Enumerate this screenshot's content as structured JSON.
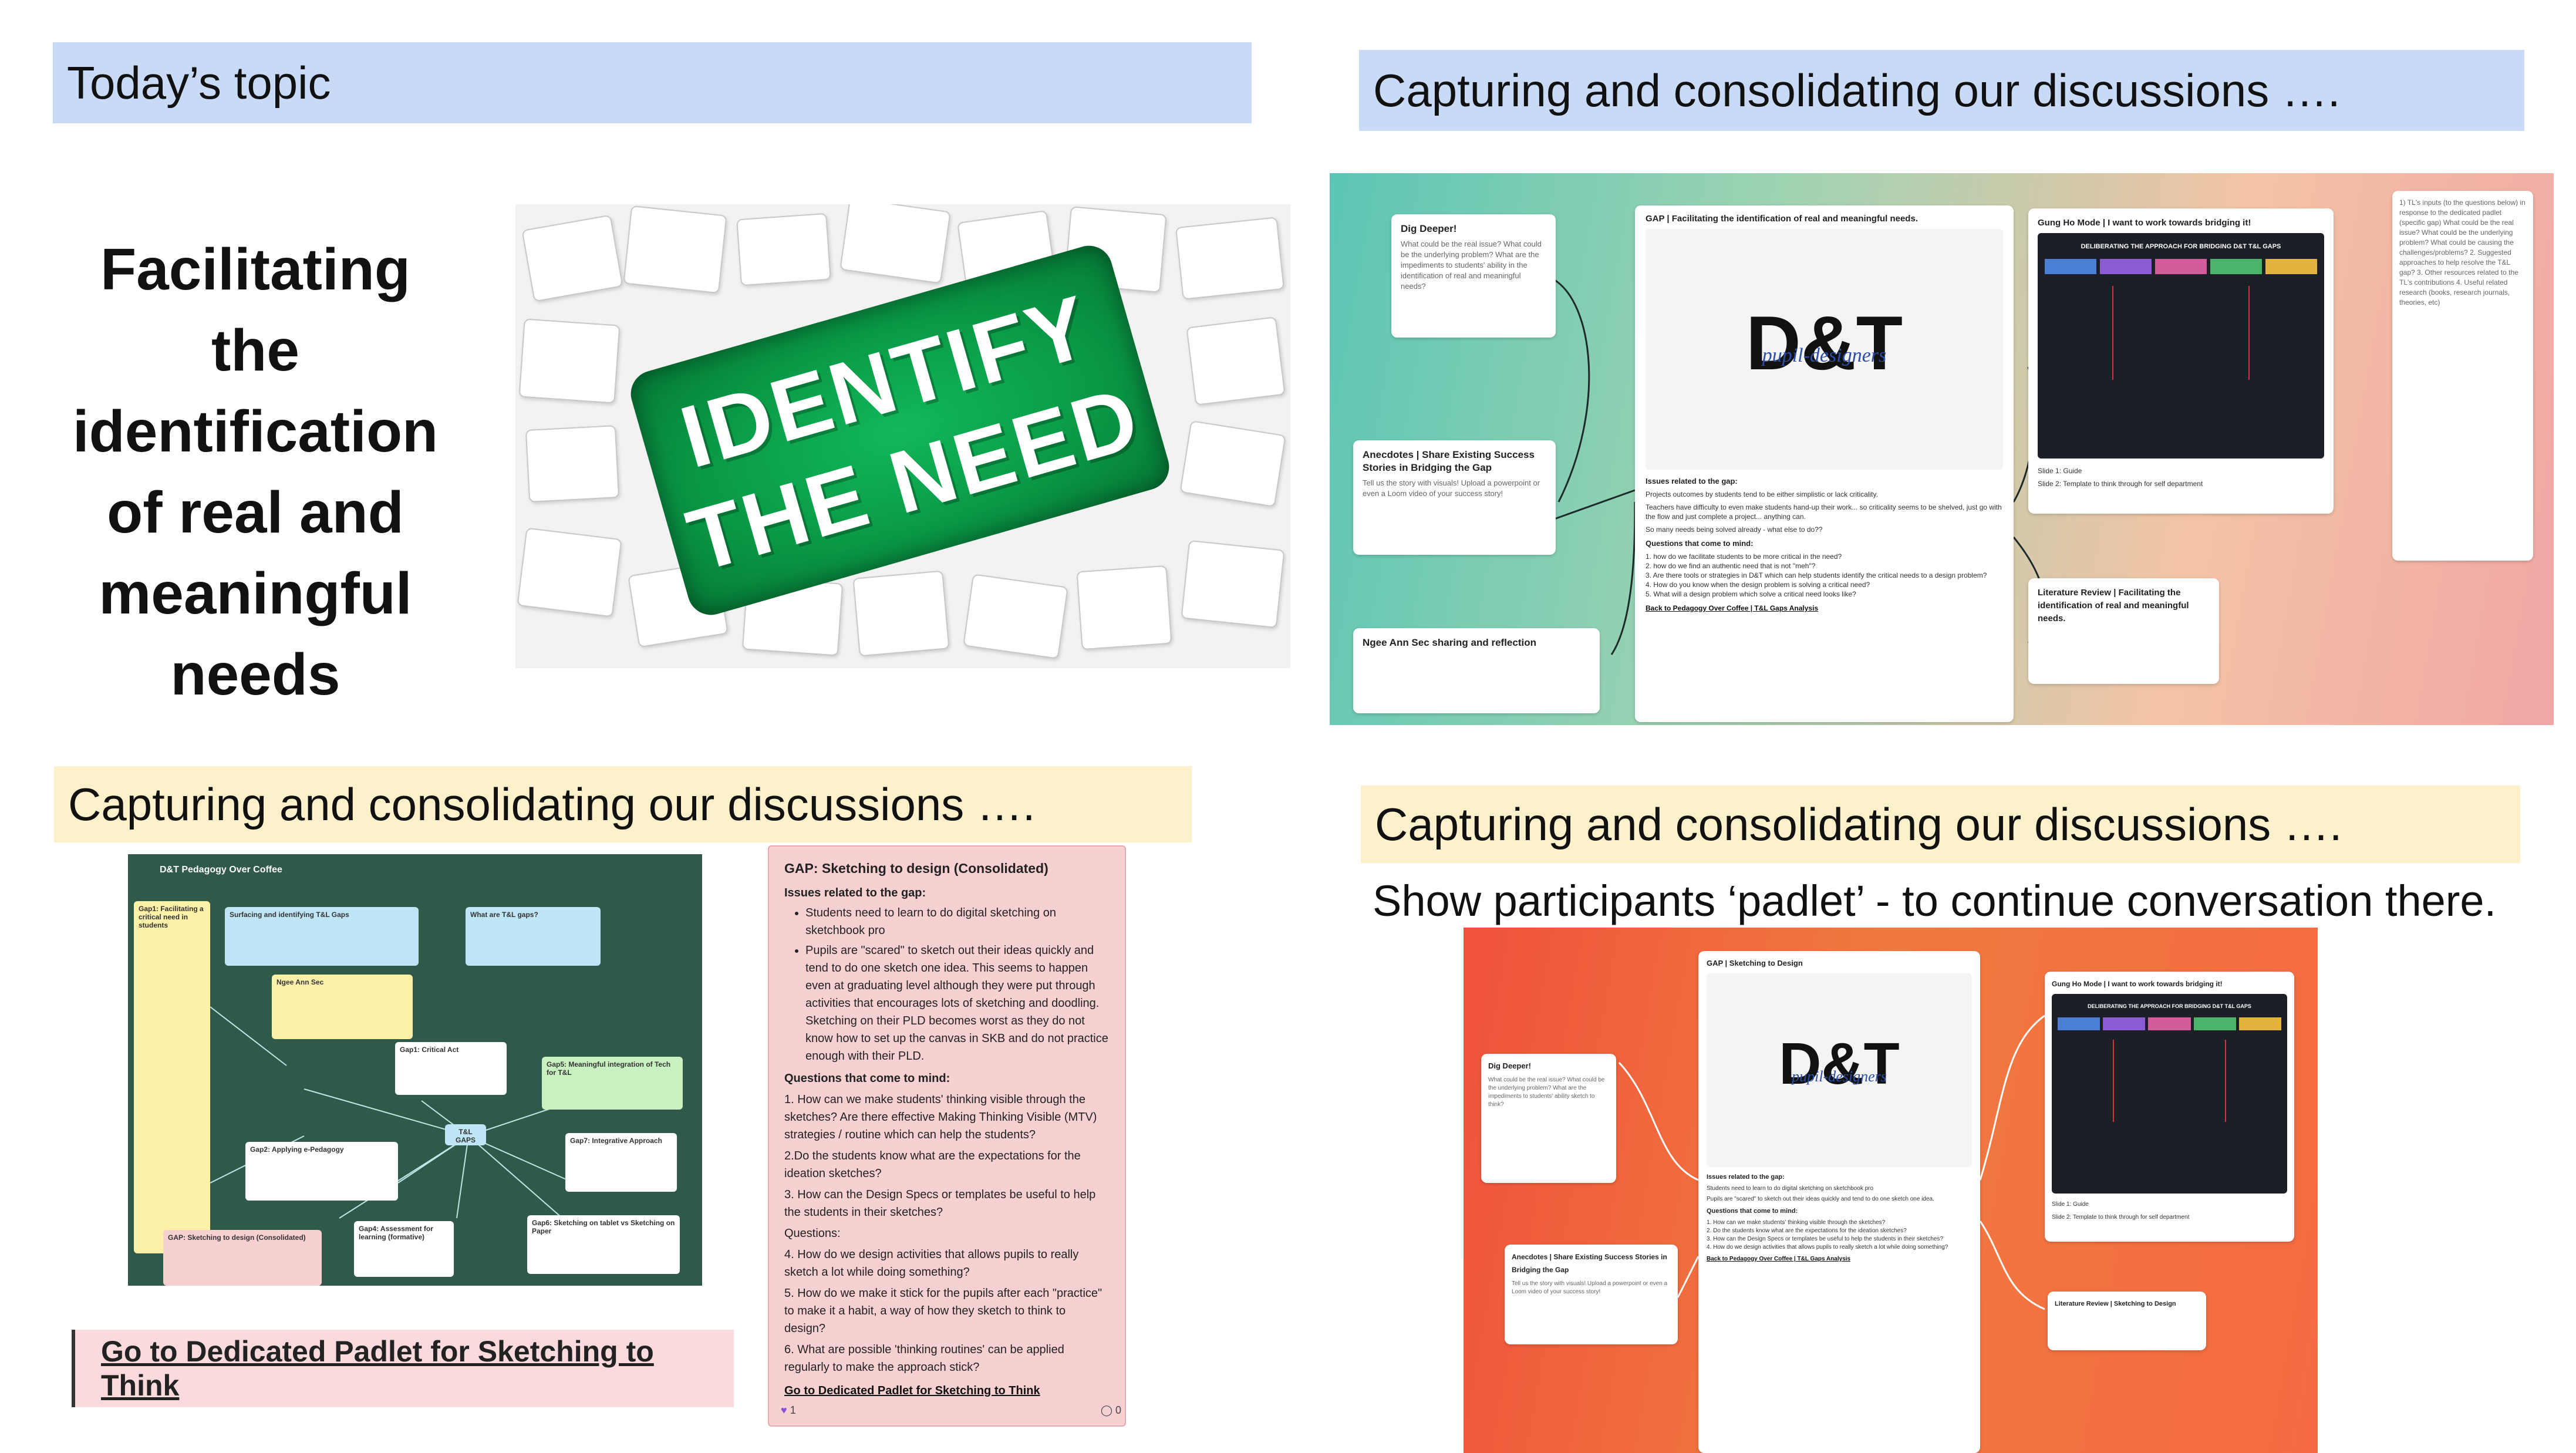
{
  "slide": {
    "top_left_bar": "Today’s topic",
    "heading_lines": [
      "Facilitating",
      "the",
      "identification",
      "of real and",
      "meaningful",
      "needs"
    ],
    "puzzle_words": [
      "IDENTIFY",
      "THE NEED"
    ],
    "top_right_bar": "Capturing and consolidating our discussions ….",
    "bottom_left_bar": "Capturing and consolidating our discussions ….",
    "bottom_right_bar": "Capturing and consolidating our discussions ….",
    "bottom_right_note": "Show participants ‘padlet’ - to continue conversation there.",
    "link_box": "Go to Dedicated Padlet for Sketching to Think"
  },
  "board_tr": {
    "card_dig": {
      "title": "Dig Deeper!",
      "body": "What could be the real issue? What could be the underlying problem? What are the impediments to students' ability in the identification of real and meaningful needs?"
    },
    "card_anec": {
      "title": "Anecdotes | Share Existing Success Stories in Bridging the Gap",
      "body": "Tell us the story with visuals! Upload a powerpoint or even a Loom video of your success story!"
    },
    "card_ngee": {
      "title": "Ngee Ann Sec sharing and reflection"
    },
    "card_gap": {
      "title": "GAP | Facilitating the identification of real and meaningful needs.",
      "issues": "Issues related to the gap:",
      "body1": "Projects outcomes by students tend to be either simplistic or lack criticality.",
      "body2": "Teachers have difficulty to even make students hand-up their work... so criticality seems to be shelved, just go with the flow and just complete a project... anything can.",
      "body3": "So many needs being solved already - what else to do??",
      "questions": "Questions that come to mind:",
      "q1": "1. how do we facilitate students to be more critical in the need?",
      "q2": "2. how do we find an authentic need that is not \"meh\"?",
      "q3": "3. Are there tools or strategies in D&T which can help students identify the critical needs to a design problem?",
      "q4": "4. How do you know when the design problem is solving a critical need?",
      "q5": "5. What will a design problem which solve a critical need looks like?",
      "back": "Back to Pedagogy Over Coffee | T&L Gaps Analysis"
    },
    "card_gung": {
      "title": "Gung Ho Mode | I want to work towards bridging it!",
      "img_title": "DELIBERATING THE APPROACH FOR BRIDGING D&T T&L GAPS",
      "s1": "Slide 1: Guide",
      "s2": "Slide 2: Template to think through for self department"
    },
    "card_lit": {
      "title": "Literature Review | Facilitating the identification of real and meaningful needs."
    },
    "card_tl": {
      "body": "1) TL's inputs (to the questions below) in response to the dedicated padlet (specific gap) What could be the real issue? What could be the underlying problem? What could be causing the challenges/problems? 2. Suggested approaches to help resolve the T&L gap? 3. Other resources related to the TL's contributions 4. Useful related research (books, research journals, theories, etc)"
    },
    "logo": {
      "main": "D&T",
      "sub": "pupil-designers"
    }
  },
  "board_bl": {
    "header": "D&T Pedagogy Over Coffee",
    "mini_gap1": "Gap1: Facilitating a critical need in students",
    "mini_surf": "Surfacing and identifying T&L Gaps",
    "mini_what": "What are T&L gaps?",
    "mini_ngee": "Ngee Ann Sec",
    "mini_crit": "Gap1: Critical Act",
    "mini_mean": "Gap5: Meaningful integration of Tech for T&L",
    "mini_tl": "T&L GAPS",
    "mini_ped": "Gap2: Applying e-Pedagogy",
    "mini_int": "Gap7: Integrative Approach",
    "mini_assess": "Gap4: Assessment for learning (formative)",
    "mini_sketch": "Gap6: Sketching on tablet vs Sketching on Paper",
    "mini_cons": "GAP: Sketching to design (Consolidated)"
  },
  "consolidated": {
    "title": "GAP: Sketching to design (Consolidated)",
    "issues": "Issues related to the gap:",
    "b1": "Students need to learn to do digital sketching on sketchbook pro",
    "b2": "Pupils are \"scared\" to sketch out their ideas quickly and tend to do one sketch one idea. This seems to happen even at graduating level although they were put through activities that encourages lots of sketching and doodling. Sketching on their PLD becomes worst as they do not know how to set up the canvas in SKB and do not practice enough with their PLD.",
    "questions": "Questions that come to mind:",
    "q1": "1. How can we make students' thinking visible through the sketches? Are there effective Making Thinking Visible (MTV) strategies / routine which can help the students?",
    "q2": "2.Do the students know what are the expectations for the ideation sketches?",
    "q3": "3. How can the Design Specs or templates be useful to help the students in their sketches?",
    "qlabel": "Questions:",
    "q4": "4. How do we design activities that allows pupils to really sketch a lot while doing something?",
    "q5": "5. How do we make it stick for the pupils after each \"practice\" to make it a habit, a way of how they sketch to think to design?",
    "q6": "6. What are possible 'thinking routines' can be applied regularly to make the approach stick?",
    "link": "Go to Dedicated Padlet for Sketching to Think",
    "likes": "1",
    "comments": "0"
  },
  "board_br": {
    "card_dig": {
      "title": "Dig Deeper!",
      "body": "What could be the real issue? What could be the underlying problem? What are the impediments to students' ability sketch to think?"
    },
    "card_anec": {
      "title": "Anecdotes | Share Existing Success Stories in Bridging the Gap",
      "body": "Tell us the story with visuals! Upload a powerpoint or even a Loom video of your success story!"
    },
    "card_gap": {
      "title": "GAP | Sketching to Design",
      "issues": "Issues related to the gap:",
      "b1": "Students need to learn to do digital sketching on sketchbook pro",
      "b2": "Pupils are \"scared\" to sketch out their ideas quickly and tend to do one sketch one idea.",
      "questions": "Questions that come to mind:",
      "q1": "1. How can we make students' thinking visible through the sketches?",
      "q2": "2. Do the students know what are the expectations for the ideation sketches?",
      "q3": "3. How can the Design Specs or templates be useful to help the students in their sketches?",
      "q4": "4. How do we design activities that allows pupils to really sketch a lot while doing something?",
      "back": "Back to Pedagogy Over Coffee | T&L Gaps Analysis"
    },
    "card_gung": {
      "title": "Gung Ho Mode | I want to work towards bridging it!",
      "img_title": "DELIBERATING THE APPROACH FOR BRIDGING D&T T&L GAPS",
      "s1": "Slide 1: Guide",
      "s2": "Slide 2: Template to think through for self department"
    },
    "card_lit": {
      "title": "Literature Review | Sketching to Design"
    },
    "logo": {
      "main": "D&T",
      "sub": "pupil-designers"
    }
  }
}
